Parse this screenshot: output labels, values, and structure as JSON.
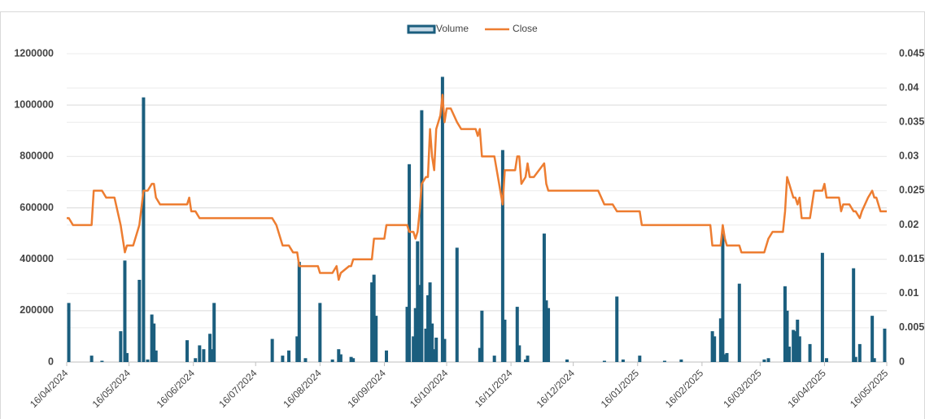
{
  "chart_data": {
    "type": "bar-line",
    "x": [
      "16/04/2024",
      "17/04/2024",
      "19/04/2024",
      "28/04/2024",
      "29/04/2024",
      "03/05/2024",
      "05/05/2024",
      "09/05/2024",
      "12/05/2024",
      "14/05/2024",
      "15/05/2024",
      "18/05/2024",
      "21/05/2024",
      "23/05/2024",
      "25/05/2024",
      "27/05/2024",
      "28/05/2024",
      "29/05/2024",
      "31/05/2024",
      "13/06/2024",
      "14/06/2024",
      "15/06/2024",
      "17/06/2024",
      "19/06/2024",
      "21/06/2024",
      "24/06/2024",
      "25/06/2024",
      "26/06/2024",
      "24/07/2024",
      "26/07/2024",
      "29/07/2024",
      "01/08/2024",
      "03/08/2024",
      "05/08/2024",
      "06/08/2024",
      "09/08/2024",
      "15/08/2024",
      "16/08/2024",
      "22/08/2024",
      "24/08/2024",
      "25/08/2024",
      "26/08/2024",
      "30/08/2024",
      "31/08/2024",
      "01/09/2024",
      "10/09/2024",
      "11/09/2024",
      "12/09/2024",
      "16/09/2024",
      "17/09/2024",
      "26/09/2024",
      "27/09/2024",
      "28/09/2024",
      "30/09/2024",
      "01/10/2024",
      "02/10/2024",
      "03/10/2024",
      "04/10/2024",
      "06/10/2024",
      "07/10/2024",
      "08/10/2024",
      "09/10/2024",
      "10/10/2024",
      "11/10/2024",
      "13/10/2024",
      "14/10/2024",
      "15/10/2024",
      "16/10/2024",
      "18/10/2024",
      "21/10/2024",
      "23/10/2024",
      "30/10/2024",
      "31/10/2024",
      "01/11/2024",
      "02/11/2024",
      "08/11/2024",
      "12/11/2024",
      "13/11/2024",
      "14/11/2024",
      "18/11/2024",
      "19/11/2024",
      "20/11/2024",
      "21/11/2024",
      "23/11/2024",
      "24/11/2024",
      "25/11/2024",
      "27/11/2024",
      "02/12/2024",
      "03/12/2024",
      "04/12/2024",
      "13/12/2024",
      "28/12/2024",
      "31/12/2024",
      "04/01/2025",
      "06/01/2025",
      "07/01/2025",
      "09/01/2025",
      "17/01/2025",
      "18/01/2025",
      "29/01/2025",
      "06/02/2025",
      "20/02/2025",
      "21/02/2025",
      "22/02/2025",
      "25/02/2025",
      "26/02/2025",
      "27/02/2025",
      "28/02/2025",
      "03/03/2025",
      "06/03/2025",
      "07/03/2025",
      "18/03/2025",
      "20/03/2025",
      "22/03/2025",
      "27/03/2025",
      "28/03/2025",
      "29/03/2025",
      "30/03/2025",
      "01/04/2025",
      "02/04/2025",
      "03/04/2025",
      "04/04/2025",
      "05/04/2025",
      "09/04/2025",
      "11/04/2025",
      "15/04/2025",
      "16/04/2025",
      "17/04/2025",
      "23/04/2025",
      "24/04/2025",
      "25/04/2025",
      "28/04/2025",
      "30/04/2025",
      "01/05/2025",
      "03/05/2025",
      "04/05/2025",
      "07/05/2025",
      "09/05/2025",
      "10/05/2025",
      "11/05/2025",
      "13/05/2025",
      "15/05/2025",
      "16/05/2025"
    ],
    "series": [
      {
        "name": "Volume",
        "color": "#1b5e7e",
        "values": [
          0,
          230000,
          0,
          25000,
          0,
          5000,
          0,
          0,
          120000,
          395000,
          35000,
          0,
          320000,
          1030000,
          10000,
          185000,
          150000,
          45000,
          0,
          85000,
          0,
          0,
          15000,
          65000,
          50000,
          110000,
          50000,
          230000,
          90000,
          0,
          25000,
          45000,
          0,
          100000,
          390000,
          15000,
          0,
          230000,
          10000,
          0,
          50000,
          30000,
          0,
          20000,
          15000,
          310000,
          340000,
          180000,
          0,
          45000,
          0,
          215000,
          770000,
          100000,
          210000,
          470000,
          300000,
          980000,
          130000,
          260000,
          310000,
          150000,
          50000,
          95000,
          0,
          1110000,
          90000,
          0,
          0,
          445000,
          0,
          0,
          0,
          55000,
          200000,
          25000,
          825000,
          165000,
          0,
          0,
          215000,
          65000,
          0,
          10000,
          25000,
          0,
          0,
          500000,
          240000,
          210000,
          10000,
          0,
          5000,
          0,
          255000,
          0,
          10000,
          25000,
          0,
          5000,
          10000,
          0,
          120000,
          100000,
          170000,
          500000,
          30000,
          35000,
          0,
          305000,
          0,
          10000,
          15000,
          0,
          0,
          295000,
          200000,
          60000,
          125000,
          120000,
          165000,
          100000,
          0,
          70000,
          0,
          425000,
          0,
          15000,
          0,
          0,
          0,
          0,
          365000,
          20000,
          70000,
          0,
          0,
          180000,
          15000,
          0,
          0,
          130000,
          0
        ]
      },
      {
        "name": "Close",
        "color": "#ed7d31",
        "axis": "y2",
        "values": [
          0.021,
          0.021,
          0.02,
          0.02,
          0.025,
          0.025,
          0.024,
          0.024,
          0.02,
          0.016,
          0.017,
          0.017,
          0.02,
          0.025,
          0.025,
          0.026,
          0.026,
          0.024,
          0.023,
          0.023,
          0.024,
          0.022,
          0.022,
          0.021,
          0.021,
          0.021,
          0.021,
          0.021,
          0.021,
          0.02,
          0.017,
          0.017,
          0.016,
          0.016,
          0.014,
          0.014,
          0.014,
          0.013,
          0.013,
          0.014,
          0.012,
          0.013,
          0.014,
          0.014,
          0.015,
          0.015,
          0.018,
          0.018,
          0.018,
          0.02,
          0.02,
          0.02,
          0.019,
          0.019,
          0.018,
          0.019,
          0.022,
          0.026,
          0.027,
          0.027,
          0.034,
          0.03,
          0.028,
          0.034,
          0.036,
          0.039,
          0.035,
          0.037,
          0.037,
          0.035,
          0.034,
          0.034,
          0.033,
          0.034,
          0.03,
          0.03,
          0.023,
          0.028,
          0.028,
          0.028,
          0.03,
          0.03,
          0.026,
          0.027,
          0.029,
          0.027,
          0.027,
          0.029,
          0.026,
          0.025,
          0.025,
          0.025,
          0.023,
          0.023,
          0.022,
          0.022,
          0.022,
          0.022,
          0.02,
          0.02,
          0.02,
          0.02,
          0.017,
          0.017,
          0.017,
          0.02,
          0.018,
          0.017,
          0.017,
          0.017,
          0.016,
          0.016,
          0.018,
          0.019,
          0.019,
          0.022,
          0.027,
          0.026,
          0.024,
          0.024,
          0.023,
          0.024,
          0.021,
          0.021,
          0.025,
          0.025,
          0.026,
          0.024,
          0.024,
          0.022,
          0.023,
          0.023,
          0.022,
          0.022,
          0.021,
          0.022,
          0.024,
          0.025,
          0.024,
          0.024,
          0.022,
          0.022,
          0.022
        ]
      }
    ],
    "xlim": [
      "16/04/2024",
      "16/05/2025"
    ],
    "xticks": [
      "16/04/2024",
      "16/05/2024",
      "16/06/2024",
      "16/07/2024",
      "16/08/2024",
      "16/09/2024",
      "16/10/2024",
      "16/11/2024",
      "16/12/2024",
      "16/01/2025",
      "16/02/2025",
      "16/03/2025",
      "16/04/2025",
      "16/05/2025"
    ],
    "ylim": [
      0,
      1200000
    ],
    "yticks": [
      0,
      200000,
      400000,
      600000,
      800000,
      1000000,
      1200000
    ],
    "y2lim": [
      0,
      0.045
    ],
    "y2ticks": [
      0,
      0.005,
      0.01,
      0.015,
      0.02,
      0.025,
      0.03,
      0.035,
      0.04,
      0.045
    ],
    "grid": true,
    "legend": "top"
  }
}
